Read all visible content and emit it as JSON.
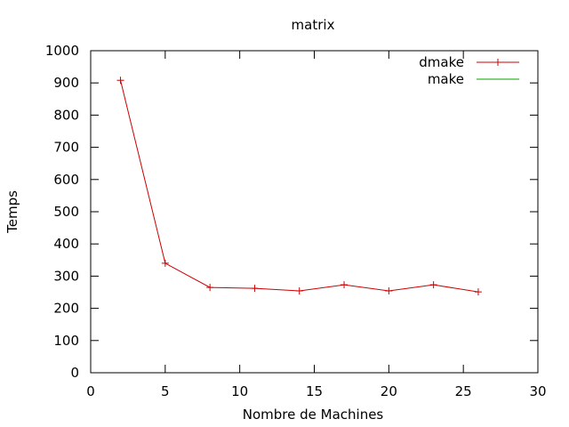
{
  "chart_data": {
    "type": "line",
    "title": "matrix",
    "xlabel": "Nombre de Machines",
    "ylabel": "Temps",
    "xlim": [
      0,
      30
    ],
    "ylim": [
      0,
      1000
    ],
    "xticks": [
      0,
      5,
      10,
      15,
      20,
      25,
      30
    ],
    "yticks": [
      0,
      100,
      200,
      300,
      400,
      500,
      600,
      700,
      800,
      900,
      1000
    ],
    "grid": false,
    "legend_position": "top-right",
    "series": [
      {
        "name": "dmake",
        "color": "#cc0000",
        "marker": "plus",
        "x": [
          2,
          5,
          8,
          11,
          14,
          17,
          20,
          23,
          26
        ],
        "y": [
          908,
          340,
          265,
          262,
          254,
          273,
          254,
          273,
          251
        ]
      },
      {
        "name": "make",
        "color": "#00a000",
        "marker": "none",
        "x": [],
        "y": []
      }
    ]
  }
}
